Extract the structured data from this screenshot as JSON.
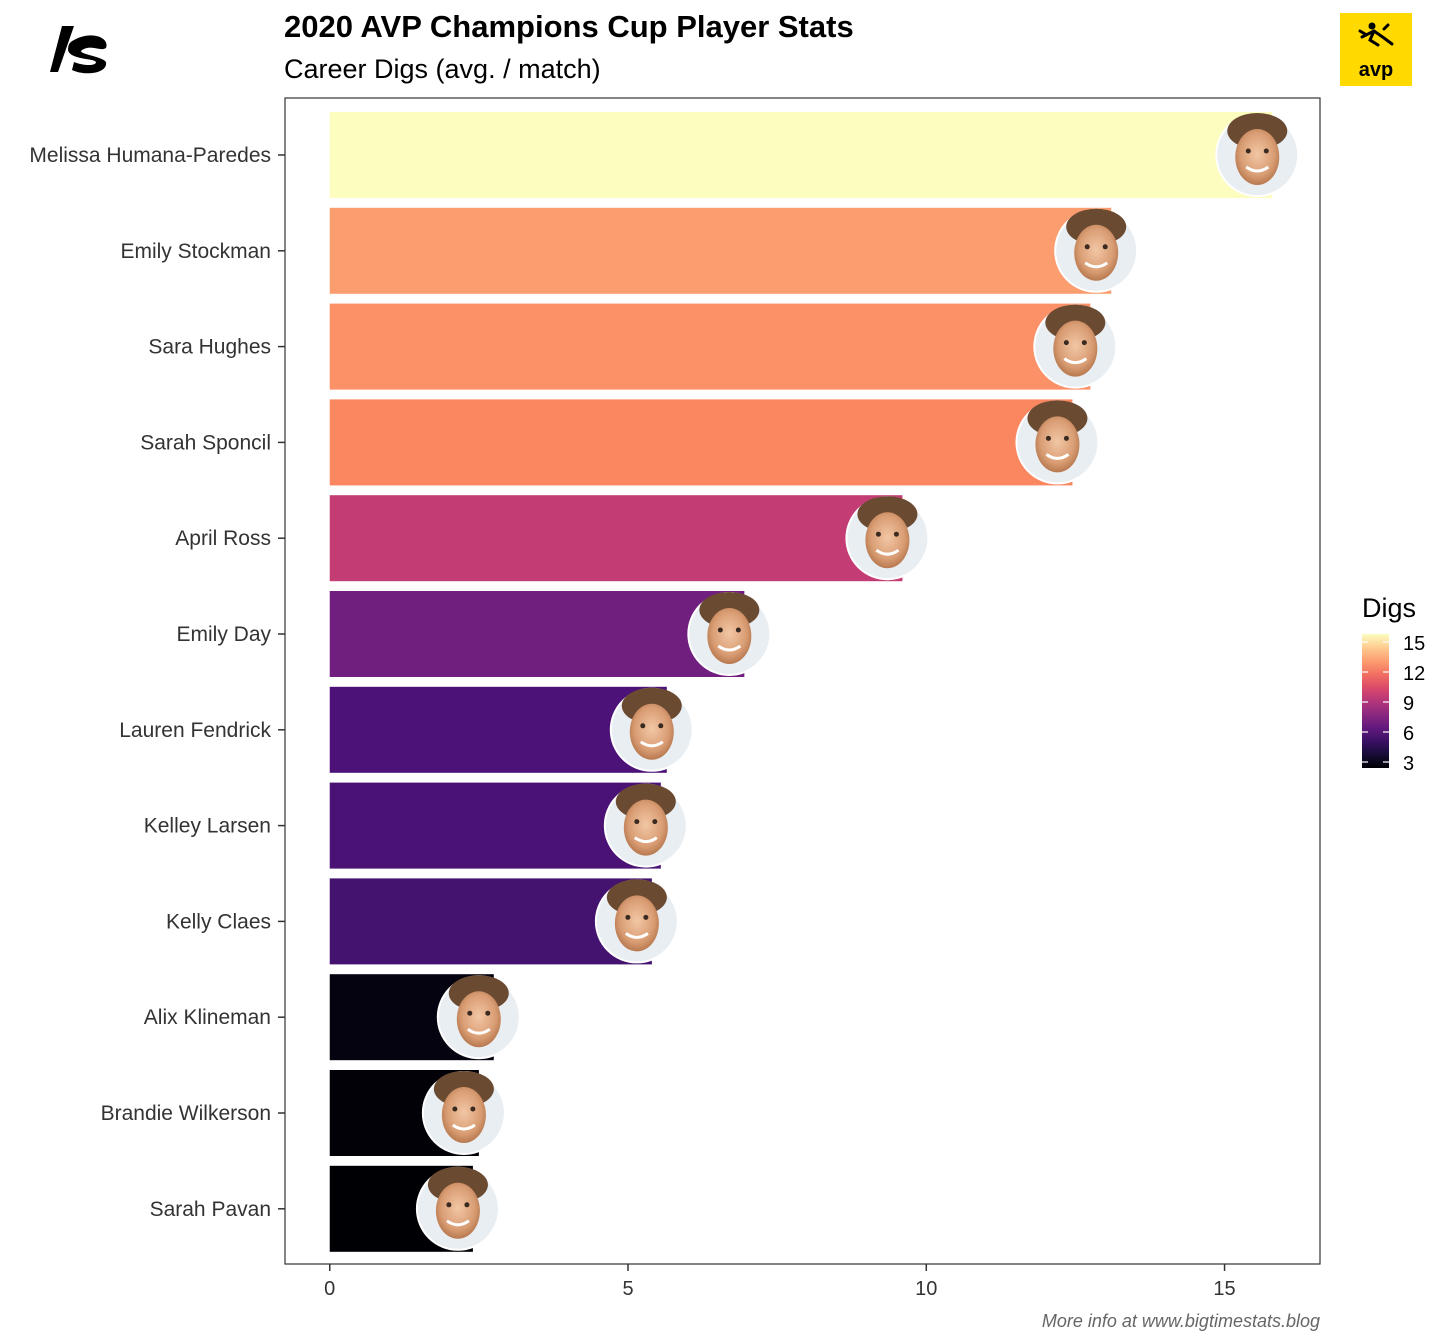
{
  "header": {
    "title": "2020 AVP Champions Cup Player Stats",
    "subtitle": "Career Digs (avg. / match)",
    "brand_logo_icon": "bigtimestats-logo-icon",
    "avp_logo_icon": "avp-logo-icon",
    "avp_logo_text": "avp",
    "avp_color": "#FFD900"
  },
  "caption": "More info at www.bigtimestats.blog",
  "chart_data": {
    "type": "bar",
    "orientation": "horizontal",
    "categories": [
      "Melissa Humana-Paredes",
      "Emily Stockman",
      "Sara Hughes",
      "Sarah Sponcil",
      "April Ross",
      "Emily Day",
      "Lauren Fendrick",
      "Kelley Larsen",
      "Kelly Claes",
      "Alix Klineman",
      "Brandie Wilkerson",
      "Sarah Pavan"
    ],
    "values": [
      15.8,
      13.1,
      12.75,
      12.45,
      9.6,
      6.95,
      5.65,
      5.55,
      5.4,
      2.75,
      2.5,
      2.4
    ],
    "xlim": [
      -0.75,
      16.6
    ],
    "xticks": [
      0,
      5,
      10,
      15
    ],
    "xlabel": "",
    "ylabel": "",
    "player_photos": true,
    "legend": {
      "title": "Digs",
      "position": "right",
      "ticks": [
        15,
        12,
        9,
        6,
        3
      ],
      "range": [
        2.4,
        15.8
      ],
      "palette": "magma"
    }
  }
}
